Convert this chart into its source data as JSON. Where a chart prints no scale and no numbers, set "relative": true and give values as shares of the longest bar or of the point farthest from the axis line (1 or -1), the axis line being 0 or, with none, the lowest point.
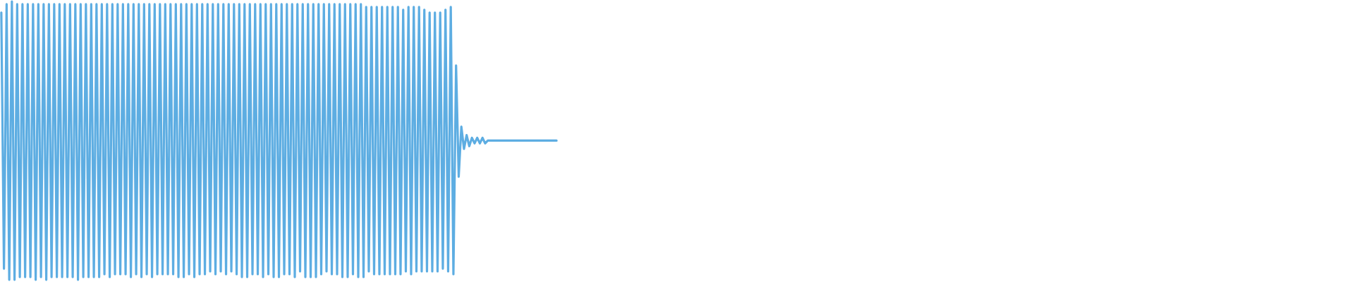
{
  "chart_data": {
    "type": "line",
    "relative": true,
    "categories": [
      null,
      null,
      null,
      null,
      null,
      null,
      null,
      null,
      null,
      null,
      null,
      null,
      null,
      null,
      null,
      null,
      null,
      null,
      null,
      null,
      null,
      null,
      null,
      null,
      null,
      null,
      null,
      null,
      null,
      null,
      null,
      null,
      null,
      null,
      null,
      null,
      null,
      null,
      null,
      null,
      null,
      null,
      null,
      null,
      null,
      null,
      null,
      null,
      null,
      null,
      null,
      null,
      null,
      null,
      null,
      null,
      null,
      null,
      null,
      null,
      null,
      null,
      null,
      null,
      null,
      null,
      null,
      null,
      null,
      null,
      null,
      null,
      null,
      null,
      null,
      null,
      null,
      null,
      null,
      null,
      null,
      null,
      null,
      null,
      null,
      null,
      null,
      null,
      null,
      null,
      null,
      null,
      null,
      null,
      null,
      null,
      null,
      null,
      null,
      null,
      null,
      null,
      null,
      null,
      null,
      null,
      null,
      null,
      null,
      null,
      null,
      null,
      null,
      null,
      null,
      null,
      null,
      null,
      null,
      null,
      null,
      null,
      null,
      null,
      null,
      null,
      null,
      null,
      null,
      null,
      null,
      null,
      null,
      null,
      null,
      null,
      null,
      null,
      null,
      null,
      null,
      null,
      null,
      null,
      null,
      null,
      null,
      null,
      null,
      null,
      null,
      null,
      null,
      null,
      null,
      null,
      null,
      null,
      null,
      null,
      null,
      null,
      null,
      null,
      null,
      null,
      null,
      null,
      null,
      null,
      null,
      null,
      null,
      null,
      null,
      null,
      null,
      null,
      null,
      null,
      null,
      null,
      null,
      null,
      null,
      null,
      null,
      null,
      null,
      null,
      null,
      null,
      null,
      null,
      null,
      null,
      null,
      null,
      null,
      null,
      null,
      null,
      null,
      null,
      null,
      null,
      null,
      null,
      null,
      null,
      null
    ],
    "series": [
      {
        "color": "#5dade2",
        "values": [
          0.96,
          0.04,
          0.99,
          0.0,
          1.0,
          0.0,
          0.99,
          0.01,
          0.99,
          0.01,
          0.99,
          0.01,
          0.99,
          0.0,
          0.99,
          0.01,
          0.99,
          0.0,
          0.99,
          0.01,
          0.99,
          0.01,
          0.99,
          0.01,
          0.99,
          0.01,
          0.99,
          0.01,
          0.99,
          0.0,
          0.99,
          0.01,
          0.99,
          0.01,
          0.99,
          0.01,
          0.99,
          0.01,
          0.99,
          0.02,
          0.99,
          0.01,
          0.99,
          0.02,
          0.99,
          0.02,
          0.99,
          0.02,
          0.99,
          0.01,
          0.99,
          0.02,
          0.99,
          0.01,
          0.99,
          0.02,
          0.99,
          0.01,
          0.99,
          0.02,
          0.99,
          0.02,
          0.99,
          0.02,
          0.99,
          0.02,
          0.99,
          0.01,
          0.99,
          0.01,
          0.99,
          0.02,
          0.99,
          0.01,
          0.99,
          0.02,
          0.99,
          0.02,
          0.99,
          0.03,
          0.99,
          0.02,
          0.99,
          0.03,
          0.99,
          0.02,
          0.99,
          0.03,
          0.99,
          0.02,
          0.99,
          0.01,
          0.99,
          0.01,
          0.99,
          0.02,
          0.99,
          0.02,
          0.99,
          0.01,
          0.99,
          0.02,
          0.99,
          0.01,
          0.99,
          0.01,
          0.99,
          0.02,
          0.99,
          0.02,
          0.99,
          0.01,
          0.99,
          0.03,
          0.99,
          0.01,
          0.99,
          0.01,
          0.99,
          0.01,
          0.99,
          0.02,
          0.99,
          0.03,
          0.99,
          0.02,
          0.99,
          0.02,
          0.99,
          0.01,
          0.99,
          0.01,
          0.99,
          0.02,
          0.99,
          0.01,
          0.99,
          0.01,
          0.98,
          0.03,
          0.98,
          0.02,
          0.98,
          0.02,
          0.98,
          0.02,
          0.98,
          0.02,
          0.98,
          0.02,
          0.98,
          0.02,
          0.97,
          0.03,
          0.98,
          0.02,
          0.98,
          0.03,
          0.98,
          0.03,
          0.97,
          0.03,
          0.96,
          0.03,
          0.96,
          0.03,
          0.96,
          0.04,
          0.97,
          0.03,
          0.98,
          0.02,
          0.77,
          0.37,
          0.55,
          0.47,
          0.52,
          0.48,
          0.51,
          0.49,
          0.51,
          0.49,
          0.51,
          0.49,
          0.5,
          0.5,
          0.5,
          0.5,
          0.5,
          0.5,
          0.5,
          0.5,
          0.5,
          0.5,
          0.5,
          0.5,
          0.5,
          0.5,
          0.5,
          0.5,
          0.5,
          0.5,
          0.5,
          0.5,
          0.5,
          0.5,
          0.5,
          0.5,
          0.5,
          0.5,
          0.5
        ]
      }
    ]
  }
}
